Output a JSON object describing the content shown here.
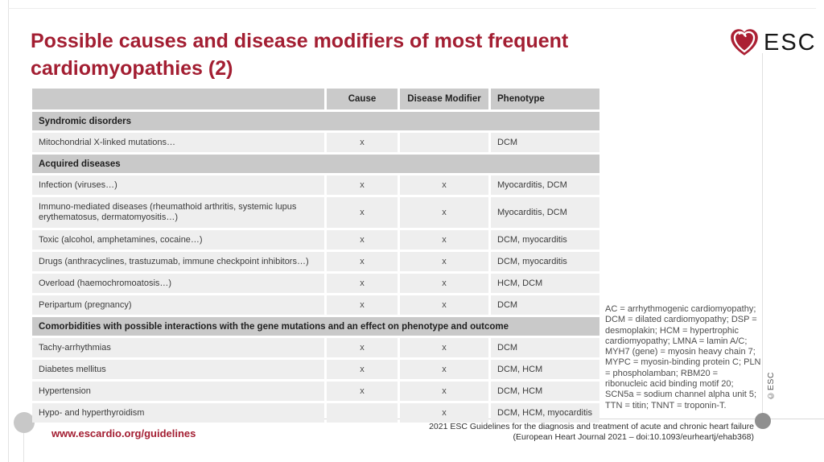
{
  "slide": {
    "title": "Possible causes and disease modifiers of most frequent\ncardiomyopathies (2)",
    "accent_color": "#a31e32",
    "header_bg": "#cacaca",
    "row_bg": "#eeeeee"
  },
  "logo": {
    "text": "ESC",
    "heart_color": "#ab1f33"
  },
  "copyright": "©ESC",
  "table": {
    "columns": {
      "label": "",
      "cause": "Cause",
      "modifier": "Disease Modifier",
      "phenotype": "Phenotype"
    },
    "rows": [
      {
        "type": "section",
        "label": "Syndromic disorders"
      },
      {
        "type": "data",
        "label": "Mitochondrial X-linked mutations…",
        "cause": "x",
        "modifier": "",
        "phenotype": "DCM"
      },
      {
        "type": "section",
        "label": "Acquired diseases"
      },
      {
        "type": "data",
        "label": "Infection (viruses…)",
        "cause": "x",
        "modifier": "x",
        "phenotype": "Myocarditis, DCM"
      },
      {
        "type": "data",
        "tall": true,
        "label": "Immuno-mediated diseases (rheumathoid arthritis, systemic lupus erythematosus, dermatomyositis…)",
        "cause": "x",
        "modifier": "x",
        "phenotype": "Myocarditis, DCM"
      },
      {
        "type": "data",
        "label": "Toxic (alcohol, amphetamines, cocaine…)",
        "cause": "x",
        "modifier": "x",
        "phenotype": "DCM, myocarditis"
      },
      {
        "type": "data",
        "label": "Drugs (anthracyclines, trastuzumab, immune checkpoint inhibitors…)",
        "cause": "x",
        "modifier": "x",
        "phenotype": "DCM, myocarditis"
      },
      {
        "type": "data",
        "label": "Overload (haemochromoatosis…)",
        "cause": "x",
        "modifier": "x",
        "phenotype": "HCM, DCM"
      },
      {
        "type": "data",
        "label": "Peripartum (pregnancy)",
        "cause": "x",
        "modifier": "x",
        "phenotype": "DCM"
      },
      {
        "type": "section",
        "label": "Comorbidities with possible interactions with the gene mutations and an effect on phenotype and outcome"
      },
      {
        "type": "data",
        "label": "Tachy-arrhythmias",
        "cause": "x",
        "modifier": "x",
        "phenotype": "DCM"
      },
      {
        "type": "data",
        "label": "Diabetes mellitus",
        "cause": "x",
        "modifier": "x",
        "phenotype": "DCM, HCM"
      },
      {
        "type": "data",
        "label": "Hypertension",
        "cause": "x",
        "modifier": "x",
        "phenotype": "DCM, HCM"
      },
      {
        "type": "data",
        "label": "Hypo- and hyperthyroidism",
        "cause": "",
        "modifier": "x",
        "phenotype": "DCM, HCM, myocarditis"
      }
    ]
  },
  "footnote": "AC = arrhythmogenic cardiomyopathy;\nDCM = dilated cardiomyopathy; DSP =\ndesmoplakin; HCM = hypertrophic\ncardiomyopathy; LMNA = lamin A/C;\nMYH7 (gene) = myosin heavy chain 7;\nMYPC = myosin-binding protein C; PLN\n= phospholamban; RBM20 =\nribonucleic acid binding motif 20;\nSCN5a = sodium channel alpha unit 5;\nTTN = titin; TNNT = troponin-T.",
  "footer": {
    "site": "www.escardio.org/guidelines",
    "reference": "2021 ESC Guidelines for the diagnosis and treatment of acute and chronic heart failure\n(European Heart Journal 2021 – doi:10.1093/eurheartj/ehab368)"
  }
}
